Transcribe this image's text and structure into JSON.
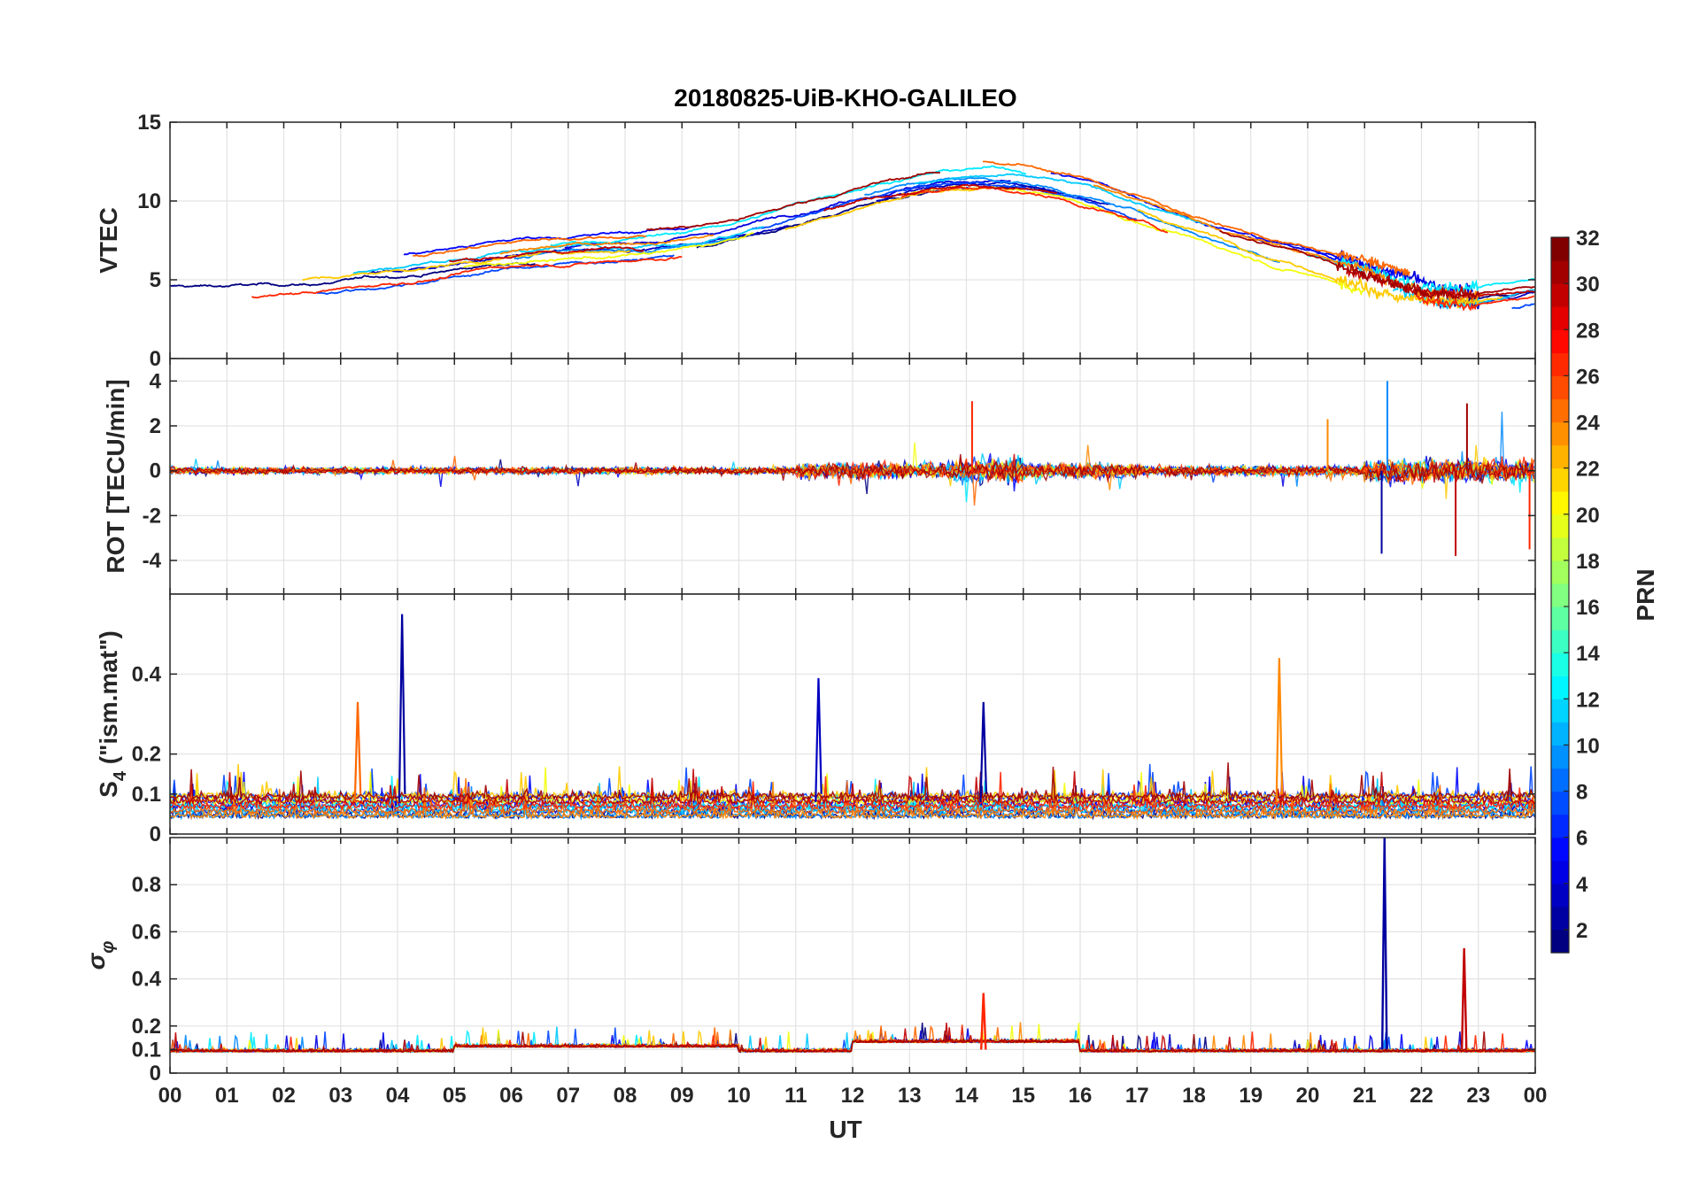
{
  "chart_data": {
    "type": "line",
    "title": "20180825-UiB-KHO-GALILEO",
    "xlabel": "UT",
    "x_range_hours": [
      0,
      24
    ],
    "x_tick_labels": [
      "00",
      "01",
      "02",
      "03",
      "04",
      "05",
      "06",
      "07",
      "08",
      "09",
      "10",
      "11",
      "12",
      "13",
      "14",
      "15",
      "16",
      "17",
      "18",
      "19",
      "20",
      "21",
      "22",
      "23",
      "00"
    ],
    "grid": true,
    "colorbar": {
      "label": "PRN",
      "range": [
        1,
        32
      ],
      "tick_labels": [
        "32",
        "30",
        "28",
        "26",
        "24",
        "22",
        "20",
        "18",
        "16",
        "14",
        "12",
        "10",
        "8",
        "6",
        "4",
        "2"
      ],
      "colormap": "jet"
    },
    "panels": [
      {
        "id": "vtec",
        "ylabel": "VTEC",
        "ylim": [
          0,
          15
        ],
        "y_ticks": [
          0,
          5,
          10,
          15
        ],
        "y_tick_labels": [
          "0",
          "5",
          "10",
          "15"
        ],
        "series_color_prns": [
          1,
          3,
          4,
          5,
          7,
          9,
          11,
          12,
          20,
          22,
          24,
          25,
          27,
          30,
          31
        ],
        "note_values": {
          "approx_daily_peak_vtec": 12,
          "peak_time_ut": 15
        }
      },
      {
        "id": "rot",
        "ylabel": "ROT [TECU/min]",
        "ylim": [
          -5.5,
          5
        ],
        "y_ticks": [
          -4,
          -2,
          0,
          2,
          4
        ],
        "y_tick_labels": [
          "-4",
          "-2",
          "0",
          "2",
          "4"
        ],
        "max_spike": 4.0,
        "min_spike": -3.8
      },
      {
        "id": "s4",
        "ylabel": "S4 (\"ism.mat\")",
        "ylabel_main": "S",
        "ylabel_sub": "4",
        "ylabel_rest": " (\"ism.mat\")",
        "ylim": [
          0,
          0.6
        ],
        "y_ticks": [
          0,
          0.1,
          0.2,
          0.4
        ],
        "y_tick_labels": [
          "0",
          "0.1",
          "0.2",
          "0.4"
        ],
        "spikes": [
          {
            "t": 4.08,
            "value": 0.55,
            "prn": 2
          },
          {
            "t": 11.4,
            "value": 0.39,
            "prn": 3
          },
          {
            "t": 19.5,
            "value": 0.44,
            "prn": 24
          },
          {
            "t": 3.3,
            "value": 0.33,
            "prn": 25
          },
          {
            "t": 14.3,
            "value": 0.33,
            "prn": 2
          }
        ]
      },
      {
        "id": "sigphi",
        "ylabel": "σφ",
        "ylabel_main": "σ",
        "ylabel_sub": "φ",
        "ylim": [
          0,
          1
        ],
        "y_ticks": [
          0,
          0.1,
          0.2,
          0.4,
          0.6,
          0.8
        ],
        "y_tick_labels": [
          "0",
          "0.1",
          "0.2",
          "0.4",
          "0.6",
          "0.8"
        ],
        "spikes": [
          {
            "t": 21.35,
            "value": 1.0,
            "prn": 2
          },
          {
            "t": 22.75,
            "value": 0.53,
            "prn": 30
          },
          {
            "t": 14.3,
            "value": 0.34,
            "prn": 27
          }
        ]
      }
    ]
  }
}
